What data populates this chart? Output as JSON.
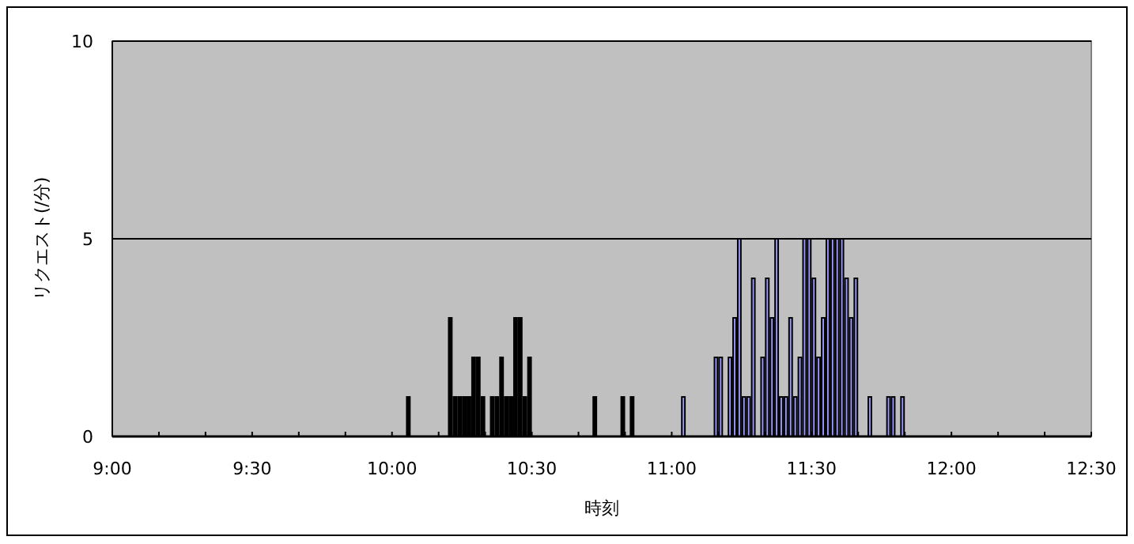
{
  "chart_data": {
    "type": "bar",
    "xlabel": "時刻",
    "ylabel": "リクエスト(/分)",
    "xlim": [
      9,
      12.5
    ],
    "xticks": [
      {
        "value": 9,
        "label": "9:00"
      },
      {
        "value": 9.1667,
        "label": null
      },
      {
        "value": 9.3333,
        "label": null
      },
      {
        "value": 9.5,
        "label": "9:30"
      },
      {
        "value": 9.6667,
        "label": null
      },
      {
        "value": 9.8333,
        "label": null
      },
      {
        "value": 10,
        "label": "10:00"
      },
      {
        "value": 10.1667,
        "label": null
      },
      {
        "value": 10.3333,
        "label": null
      },
      {
        "value": 10.5,
        "label": "10:30"
      },
      {
        "value": 10.6667,
        "label": null
      },
      {
        "value": 10.8333,
        "label": null
      },
      {
        "value": 11,
        "label": "11:00"
      },
      {
        "value": 11.1667,
        "label": null
      },
      {
        "value": 11.3333,
        "label": null
      },
      {
        "value": 11.5,
        "label": "11:30"
      },
      {
        "value": 11.6667,
        "label": null
      },
      {
        "value": 11.8333,
        "label": null
      },
      {
        "value": 12,
        "label": "12:00"
      },
      {
        "value": 12.1667,
        "label": null
      },
      {
        "value": 12.3333,
        "label": null
      },
      {
        "value": 12.5,
        "label": "12:30"
      }
    ],
    "ylim": [
      0,
      10
    ],
    "yticks": [
      0,
      5,
      10
    ],
    "grid": "y",
    "series": [
      {
        "color": "#000000",
        "x": [
          10.05,
          10.2,
          10.2167,
          10.2333,
          10.25,
          10.2667,
          10.2833,
          10.3,
          10.3167,
          10.35,
          10.3667,
          10.3833,
          10.4,
          10.4167,
          10.4333,
          10.45,
          10.4667,
          10.4833,
          10.7167,
          10.8167,
          10.85
        ],
        "values": [
          1,
          3,
          1,
          1,
          1,
          1,
          2,
          2,
          1,
          1,
          1,
          2,
          1,
          1,
          3,
          3,
          1,
          2,
          1,
          1,
          1
        ]
      },
      {
        "color": "#9999ff",
        "x": [
          11.0333,
          11.15,
          11.1667,
          11.2,
          11.2167,
          11.2333,
          11.25,
          11.2667,
          11.2833,
          11.3167,
          11.3333,
          11.35,
          11.3667,
          11.3833,
          11.4,
          11.4167,
          11.4333,
          11.45,
          11.4667,
          11.4833,
          11.5,
          11.5167,
          11.5333,
          11.55,
          11.5667,
          11.5833,
          11.6,
          11.6167,
          11.6333,
          11.65,
          11.7,
          11.7667,
          11.7833,
          11.8167
        ],
        "values": [
          1,
          2,
          2,
          2,
          3,
          5,
          1,
          1,
          4,
          2,
          4,
          3,
          5,
          1,
          1,
          3,
          1,
          2,
          5,
          5,
          4,
          2,
          3,
          5,
          5,
          5,
          5,
          4,
          3,
          4,
          1,
          1,
          1,
          1
        ]
      }
    ]
  }
}
